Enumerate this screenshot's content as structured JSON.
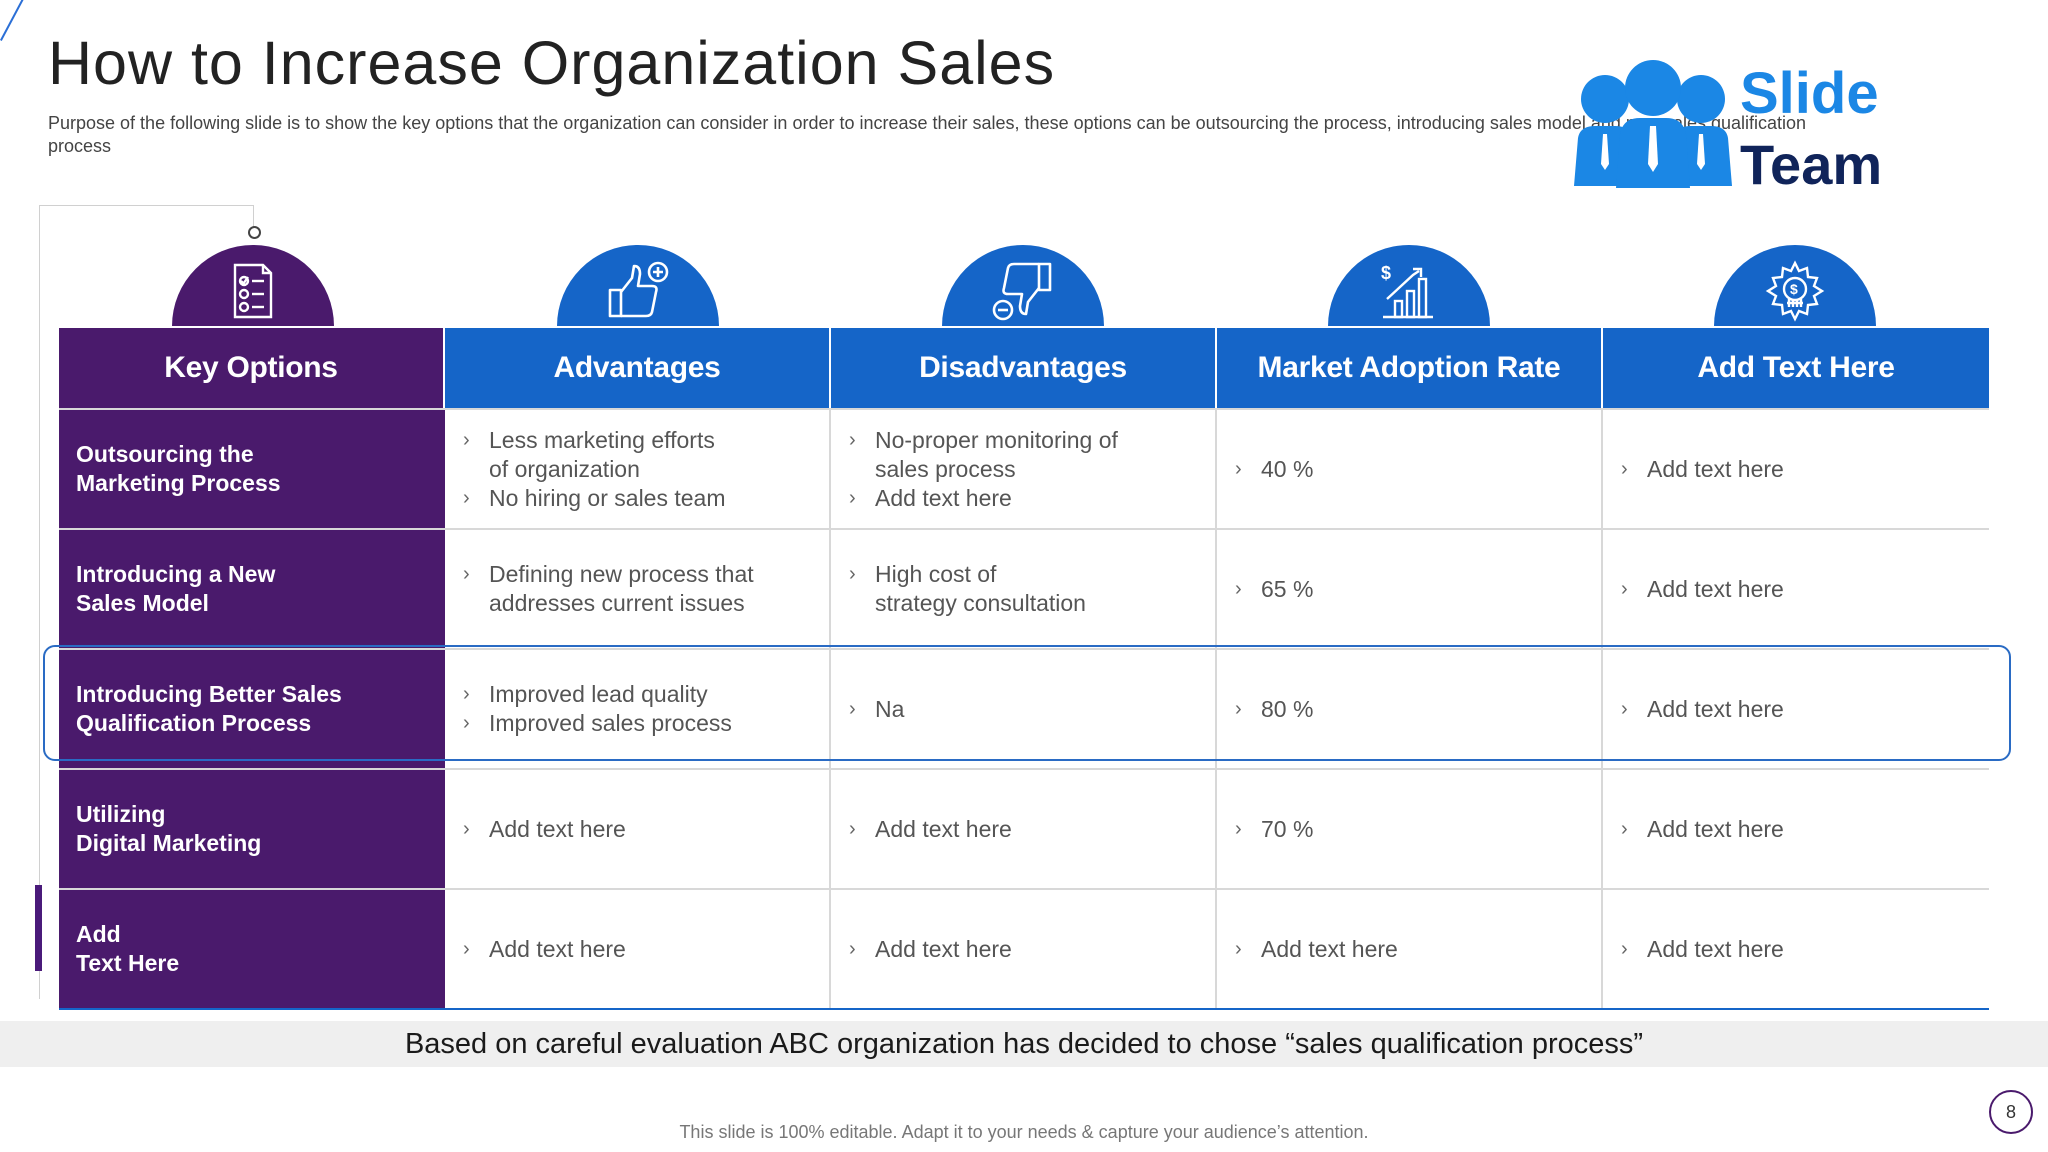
{
  "slide": {
    "title": "How to Increase Organization Sales",
    "subtitle": "Purpose of the following slide is to show the key options that the organization can consider in order to increase their sales, these options can be outsourcing the process, introducing sales model and new sales qualification process",
    "conclusion": "Based on careful evaluation ABC organization has decided to chose “sales qualification process”",
    "footer": "This slide is 100% editable. Adapt it to your needs & capture your audience’s attention.",
    "page_number": "8"
  },
  "logo": {
    "line1": "Slide",
    "line2": "Team"
  },
  "colors": {
    "purple": "#4a1a6c",
    "blue": "#1565c8",
    "logo_blue": "#1b87e5",
    "logo_navy": "#10245a"
  },
  "table": {
    "headers": [
      {
        "label": "Key Options",
        "icon": "checklist-icon"
      },
      {
        "label": "Advantages",
        "icon": "thumbs-up-plus-icon"
      },
      {
        "label": "Disadvantages",
        "icon": "thumbs-down-minus-icon"
      },
      {
        "label": "Market Adoption Rate",
        "icon": "growth-chart-dollar-icon"
      },
      {
        "label": "Add Text Here",
        "icon": "gear-dollar-icon"
      }
    ],
    "rows": [
      {
        "option": "Outsourcing the\nMarketing Process",
        "advantages": [
          "Less marketing efforts\nof organization",
          "No hiring or sales team"
        ],
        "disadvantages": [
          "No-proper monitoring of\nsales process",
          "Add text here"
        ],
        "adoption": [
          "40 %"
        ],
        "extra": [
          "Add text here"
        ]
      },
      {
        "option": "Introducing a New\nSales Model",
        "advantages": [
          "Defining new process that\naddresses current issues"
        ],
        "disadvantages": [
          "High cost of\nstrategy consultation"
        ],
        "adoption": [
          "65 %"
        ],
        "extra": [
          "Add text here"
        ]
      },
      {
        "option": "Introducing Better Sales\nQualification Process",
        "advantages": [
          "Improved lead quality",
          "Improved sales process"
        ],
        "disadvantages": [
          "Na"
        ],
        "adoption": [
          "80 %"
        ],
        "extra": [
          "Add text here"
        ]
      },
      {
        "option": "Utilizing\nDigital Marketing",
        "advantages": [
          "Add text here"
        ],
        "disadvantages": [
          "Add text here"
        ],
        "adoption": [
          "70 %"
        ],
        "extra": [
          "Add text here"
        ]
      },
      {
        "option": "Add\nText Here",
        "advantages": [
          "Add text here"
        ],
        "disadvantages": [
          "Add text here"
        ],
        "adoption": [
          "Add text here"
        ],
        "extra": [
          "Add text here"
        ]
      }
    ]
  }
}
